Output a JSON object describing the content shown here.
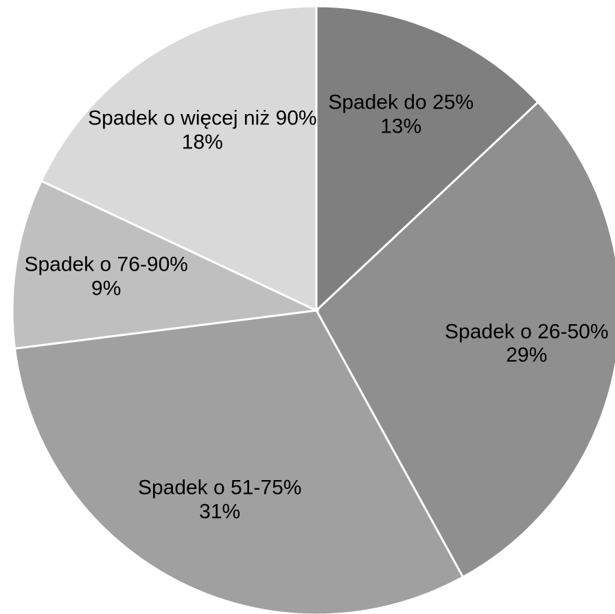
{
  "chart_data": {
    "type": "pie",
    "categories": [
      "Spadek do 25%",
      "Spadek o 26-50%",
      "Spadek o 51-75%",
      "Spadek o 76-90%",
      "Spadek o więcej niż 90%"
    ],
    "values": [
      13,
      29,
      31,
      9,
      18
    ],
    "value_labels": [
      "13%",
      "29%",
      "31%",
      "9%",
      "18%"
    ],
    "colors": [
      "#7f7f7f",
      "#8f8f8f",
      "#a0a0a0",
      "#bfbfbf",
      "#d9d9d9"
    ]
  }
}
